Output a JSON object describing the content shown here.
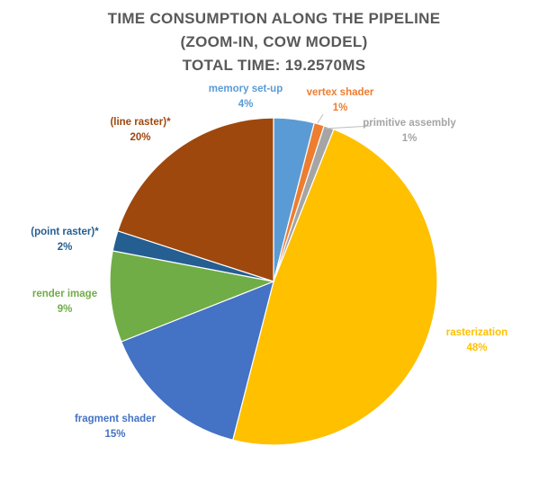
{
  "chart_data": {
    "type": "pie",
    "title_lines": [
      "TIME CONSUMPTION ALONG THE PIPELINE",
      "(ZOOM-IN, COW MODEL)",
      "TOTAL TIME: 19.2570MS"
    ],
    "start_angle_deg": 0,
    "direction": "clockwise",
    "legend": "none",
    "slices": [
      {
        "name": "memory set-up",
        "value": 4,
        "label": "4%",
        "color": "#5B9BD5"
      },
      {
        "name": "vertex shader",
        "value": 1,
        "label": "1%",
        "color": "#ED7D31"
      },
      {
        "name": "primitive assembly",
        "value": 1,
        "label": "1%",
        "color": "#A5A5A5"
      },
      {
        "name": "rasterization",
        "value": 48,
        "label": "48%",
        "color": "#FFC000"
      },
      {
        "name": "fragment shader",
        "value": 15,
        "label": "15%",
        "color": "#4472C4"
      },
      {
        "name": "render image",
        "value": 9,
        "label": "9%",
        "color": "#70AD47"
      },
      {
        "name": "(point raster)*",
        "value": 2,
        "label": "2%",
        "color": "#255E91"
      },
      {
        "name": "(line raster)*",
        "value": 20,
        "label": "20%",
        "color": "#9E480E"
      }
    ]
  }
}
